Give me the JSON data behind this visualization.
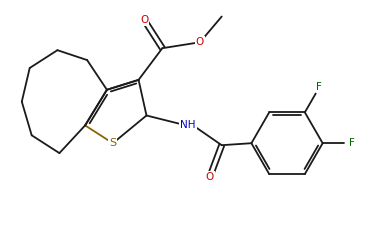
{
  "bg_color": "#ffffff",
  "bond_color": "#1a1a1a",
  "o_color": "#cc0000",
  "n_color": "#0000cc",
  "s_color": "#886600",
  "f_color": "#006600",
  "lw": 1.3,
  "figsize": [
    3.88,
    2.31
  ],
  "dpi": 100,
  "xlim": [
    0,
    9.5
  ],
  "ylim": [
    0,
    5.8
  ]
}
